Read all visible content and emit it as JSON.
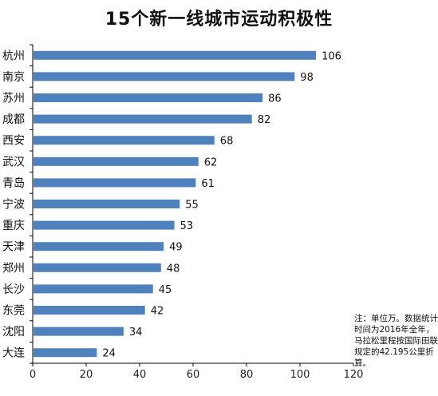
{
  "chart_data": {
    "type": "bar",
    "orientation": "horizontal",
    "title": "15个新一线城市运动积极性",
    "categories": [
      "杭州",
      "南京",
      "苏州",
      "成都",
      "西安",
      "武汉",
      "青岛",
      "宁波",
      "重庆",
      "天津",
      "郑州",
      "长沙",
      "东莞",
      "沈阳",
      "大连"
    ],
    "values": [
      106,
      98,
      86,
      82,
      68,
      62,
      61,
      55,
      53,
      49,
      48,
      45,
      42,
      34,
      24
    ],
    "xlim": [
      0,
      120
    ],
    "xticks": [
      0,
      20,
      40,
      60,
      80,
      100,
      120
    ],
    "xlabel": "",
    "ylabel": "",
    "grid": false,
    "bar_color": "#4f81bd",
    "annotation": "注：单位万。数据统计时间为2016年全年，马拉松里程按国际田联规定的42.195公里折算。"
  }
}
